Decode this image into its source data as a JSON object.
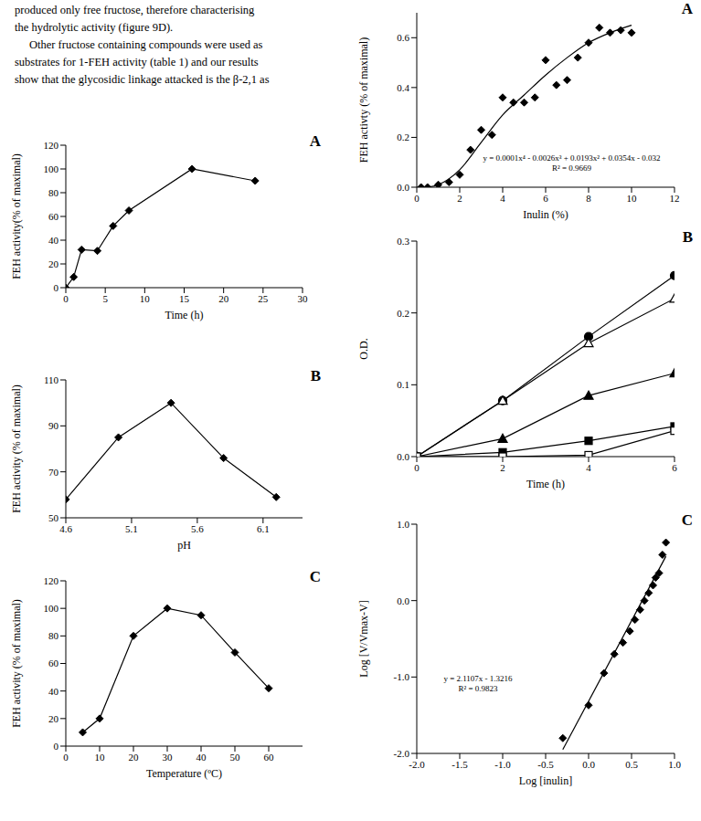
{
  "text": {
    "lines": [
      "produced only free fructose, therefore characterising",
      "the hydrolytic activity (figure 9D).",
      "Other fructose containing compounds were used as",
      "substrates for 1-FEH activity (table 1) and our results",
      "show that the glycosidic linkage attacked is the β-2,1 as"
    ]
  },
  "chart_data": [
    {
      "type": "line",
      "panel": "A",
      "x_label": "Time (h)",
      "y_label": "FEH activity(% of maximal)",
      "xlim": [
        0,
        30
      ],
      "xticks": [
        0,
        5,
        10,
        15,
        20,
        25,
        30
      ],
      "ylim": [
        0,
        120
      ],
      "yticks": [
        0,
        20,
        40,
        60,
        80,
        100,
        120
      ],
      "series": [
        {
          "color": "#000000",
          "marker": "diamond",
          "line_style": "solid",
          "x": [
            0,
            1,
            2,
            4,
            6,
            8,
            16,
            24
          ],
          "values": [
            0,
            9,
            32,
            31,
            52,
            65,
            100,
            90
          ]
        }
      ]
    },
    {
      "type": "line",
      "panel": "B",
      "x_label": "pH",
      "y_label": "FEH activity  (% of  maximal)",
      "xlim": [
        4.6,
        6.4
      ],
      "xticks": [
        4.6,
        5.1,
        5.6,
        6.1
      ],
      "ylim": [
        50,
        110
      ],
      "yticks": [
        50,
        70,
        90,
        110
      ],
      "series": [
        {
          "color": "#000000",
          "marker": "diamond",
          "line_style": "solid",
          "x": [
            4.6,
            5.0,
            5.4,
            5.8,
            6.2
          ],
          "values": [
            58,
            85,
            100,
            76,
            59
          ]
        }
      ]
    },
    {
      "type": "line",
      "panel": "C",
      "x_label": "Temperature (ºC)",
      "y_label": "FEH activity  (% of maximal)",
      "xlim": [
        0,
        70
      ],
      "xticks": [
        0,
        10,
        20,
        30,
        40,
        50,
        60
      ],
      "ylim": [
        0,
        120
      ],
      "yticks": [
        0,
        20,
        40,
        60,
        80,
        100,
        120
      ],
      "series": [
        {
          "color": "#000000",
          "marker": "diamond",
          "line_style": "solid",
          "x": [
            5,
            10,
            20,
            30,
            40,
            50,
            60
          ],
          "values": [
            10,
            20,
            80,
            100,
            95,
            68,
            42
          ]
        }
      ]
    },
    {
      "type": "scatter",
      "panel": "A",
      "x_label": "Inulin (%)",
      "y_label": "FEH activty (% of maximal)",
      "annotations": [
        "y = 0.0001x⁴ - 0.0026x³ + 0.0193x² + 0.0354x - 0.032",
        "R² = 0.9669"
      ],
      "xlim": [
        0,
        12
      ],
      "xticks": [
        0,
        2,
        4,
        6,
        8,
        10,
        12
      ],
      "ylim": [
        0,
        0.7
      ],
      "yticks": [
        {
          "value": 0,
          "label": "0.0"
        },
        {
          "value": 0.2,
          "label": "0.2"
        },
        {
          "value": 0.4,
          "label": "0.4"
        },
        {
          "value": 0.6,
          "label": "0.6"
        }
      ],
      "series": [
        {
          "color": "#000000",
          "marker": "diamond",
          "line_style": "none",
          "x": [
            0.2,
            0.5,
            1,
            1.5,
            2,
            2.5,
            3,
            3.5,
            4,
            4.5,
            5,
            5.5,
            6,
            6.5,
            7,
            7.5,
            8,
            8.5,
            9,
            9.5,
            10
          ],
          "values": [
            0,
            0,
            0.01,
            0.02,
            0.05,
            0.15,
            0.23,
            0.21,
            0.36,
            0.34,
            0.34,
            0.36,
            0.51,
            0.41,
            0.43,
            0.52,
            0.58,
            0.64,
            0.62,
            0.63,
            0.62
          ]
        },
        {
          "color": "#000000",
          "marker": "none",
          "line_style": "solid",
          "x": [
            0.5,
            1,
            2,
            3,
            4,
            5,
            6,
            7,
            8,
            9,
            10
          ],
          "values": [
            0,
            0.01,
            0.07,
            0.18,
            0.29,
            0.37,
            0.45,
            0.52,
            0.58,
            0.62,
            0.65
          ]
        }
      ]
    },
    {
      "type": "line",
      "panel": "B",
      "x_label": "Time (h)",
      "y_label": "O.D.",
      "xlim": [
        0,
        6
      ],
      "xticks": [
        0,
        2,
        4,
        6
      ],
      "ylim": [
        0,
        0.3
      ],
      "yticks": [
        {
          "value": 0,
          "label": "0.0"
        },
        {
          "value": 0.1,
          "label": "0.1"
        },
        {
          "value": 0.2,
          "label": "0.2"
        },
        {
          "value": 0.3,
          "label": "0.3"
        }
      ],
      "series": [
        {
          "color": "#000000",
          "marker": "circle",
          "line_style": "solid",
          "x": [
            0,
            2,
            4,
            6
          ],
          "values": [
            0,
            0.078,
            0.167,
            0.252
          ]
        },
        {
          "color": "#000000",
          "marker": "triangle_open",
          "line_style": "solid",
          "x": [
            0,
            2,
            4,
            6
          ],
          "values": [
            0,
            0.078,
            0.158,
            0.22
          ]
        },
        {
          "color": "#000000",
          "marker": "triangle",
          "line_style": "solid",
          "x": [
            0,
            2,
            4,
            6
          ],
          "values": [
            0,
            0.025,
            0.085,
            0.116
          ]
        },
        {
          "color": "#000000",
          "marker": "square",
          "line_style": "solid",
          "x": [
            0,
            2,
            4,
            6
          ],
          "values": [
            0,
            0.006,
            0.022,
            0.042
          ]
        },
        {
          "color": "#000000",
          "marker": "square_open",
          "line_style": "solid",
          "x": [
            0,
            2,
            4,
            6
          ],
          "values": [
            0,
            0,
            0.002,
            0.036
          ]
        }
      ]
    },
    {
      "type": "scatter",
      "panel": "C",
      "x_label": "Log [inulin]",
      "y_label": "Log [V/Vmax-V]",
      "annotations": [
        "y = 2.1107x - 1.3216",
        "R² = 0.9823"
      ],
      "xlim": [
        -2,
        1
      ],
      "xticks": [
        {
          "value": -2,
          "label": "-2.0"
        },
        {
          "value": -1.5,
          "label": "-1.5"
        },
        {
          "value": -1,
          "label": "-1.0"
        },
        {
          "value": -0.5,
          "label": "-0.5"
        },
        {
          "value": 0,
          "label": "0.0"
        },
        {
          "value": 0.5,
          "label": "0.5"
        },
        {
          "value": 1,
          "label": "1.0"
        }
      ],
      "ylim": [
        -2,
        1
      ],
      "yticks": [
        {
          "value": -2,
          "label": "-2.0"
        },
        {
          "value": -1,
          "label": "-1.0"
        },
        {
          "value": 0,
          "label": "0.0"
        },
        {
          "value": 1,
          "label": "1.0"
        }
      ],
      "series": [
        {
          "color": "#000000",
          "marker": "diamond",
          "line_style": "none",
          "x": [
            -0.3,
            0,
            0.18,
            0.3,
            0.4,
            0.48,
            0.54,
            0.6,
            0.65,
            0.7,
            0.75,
            0.78,
            0.82,
            0.86,
            0.9
          ],
          "values": [
            -1.8,
            -1.37,
            -0.95,
            -0.7,
            -0.55,
            -0.4,
            -0.25,
            -0.12,
            0,
            0.1,
            0.2,
            0.3,
            0.36,
            0.6,
            0.76
          ]
        },
        {
          "color": "#000000",
          "marker": "none",
          "line_style": "solid",
          "x": [
            -0.3,
            0.9
          ],
          "values": [
            -1.95,
            0.58
          ]
        }
      ]
    }
  ]
}
